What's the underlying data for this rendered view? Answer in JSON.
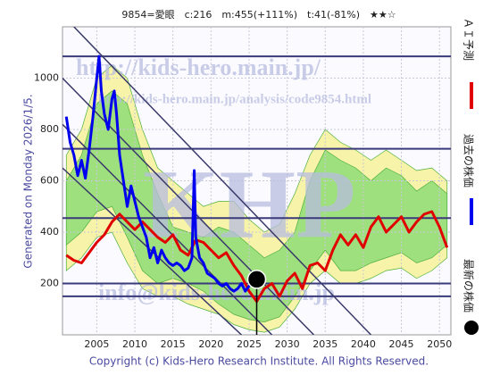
{
  "chart_data": {
    "type": "line",
    "title": "9854=愛眼　c:216　m:455(+111%)　t:41(-81%)　★★☆",
    "side_label": "Generated on Monday 2026/1/5.",
    "footer": "Copyright (c) Kids-Hero Research Institute. All Rights Reserved.",
    "watermarks": [
      "http://kids-hero.main.jp/",
      "http://kids-hero.main.jp/analysis/code9854.html",
      "info@kids-hero.main.jp",
      "KHP"
    ],
    "xlim": [
      2000.5,
      2051.5
    ],
    "ylim": [
      0,
      1200
    ],
    "xticks": [
      2005,
      2010,
      2015,
      2020,
      2025,
      2030,
      2035,
      2040,
      2045,
      2050
    ],
    "yticks": [
      200,
      400,
      600,
      800,
      1000
    ],
    "grid": true,
    "hlines": {
      "color": "#3a3a7a",
      "values": [
        1085,
        725,
        455,
        200,
        150
      ]
    },
    "trend_lines": {
      "color": "#3a3a6a",
      "lines": [
        {
          "x": [
            2002,
            2041
          ],
          "values": [
            1200,
            0
          ]
        },
        {
          "x": [
            2000.5,
            2033.5
          ],
          "values": [
            1000,
            0
          ]
        },
        {
          "x": [
            2000.5,
            2028
          ],
          "values": [
            820,
            0
          ]
        },
        {
          "x": [
            2000.5,
            2024
          ],
          "values": [
            650,
            0
          ]
        }
      ]
    },
    "bands": [
      {
        "color": "#f7f3a8",
        "x": [
          2001,
          2003,
          2005,
          2007,
          2009,
          2011,
          2013,
          2015,
          2017,
          2019,
          2021,
          2023,
          2025,
          2027,
          2029,
          2031,
          2033,
          2035,
          2037,
          2039,
          2041,
          2043,
          2045,
          2047,
          2049,
          2051
        ],
        "upper": [
          700,
          800,
          1000,
          1050,
          1000,
          800,
          650,
          600,
          550,
          500,
          520,
          520,
          450,
          400,
          430,
          550,
          700,
          800,
          750,
          720,
          680,
          720,
          680,
          640,
          650,
          600
        ],
        "lower": [
          250,
          300,
          380,
          400,
          280,
          180,
          150,
          150,
          120,
          100,
          80,
          40,
          20,
          10,
          30,
          100,
          200,
          250,
          200,
          200,
          220,
          250,
          260,
          220,
          250,
          300
        ]
      },
      {
        "color": "#9ee07e",
        "x": [
          2001,
          2003,
          2005,
          2007,
          2009,
          2011,
          2013,
          2015,
          2017,
          2019,
          2021,
          2023,
          2025,
          2027,
          2029,
          2031,
          2033,
          2035,
          2037,
          2039,
          2041,
          2043,
          2045,
          2047,
          2049,
          2051
        ],
        "upper": [
          600,
          700,
          900,
          950,
          900,
          700,
          550,
          420,
          400,
          380,
          420,
          400,
          350,
          300,
          330,
          400,
          600,
          720,
          680,
          650,
          600,
          650,
          620,
          560,
          600,
          550
        ],
        "lower": [
          350,
          400,
          480,
          500,
          380,
          250,
          200,
          220,
          200,
          170,
          120,
          80,
          60,
          50,
          70,
          150,
          250,
          330,
          250,
          250,
          280,
          300,
          320,
          280,
          300,
          350
        ]
      }
    ],
    "series": [
      {
        "name": "ＡＩ予測",
        "color": "#e00000",
        "x": [
          2001,
          2002,
          2003,
          2004,
          2005,
          2006,
          2007,
          2008,
          2009,
          2010,
          2011,
          2012,
          2013,
          2014,
          2015,
          2016,
          2017,
          2018,
          2019,
          2020,
          2021,
          2022,
          2023,
          2024,
          2025,
          2026,
          2027,
          2028,
          2029,
          2030,
          2031,
          2032,
          2033,
          2034,
          2035,
          2036,
          2037,
          2038,
          2039,
          2040,
          2041,
          2042,
          2043,
          2044,
          2045,
          2046,
          2047,
          2048,
          2049,
          2050,
          2051
        ],
        "values": [
          310,
          290,
          280,
          320,
          360,
          390,
          440,
          470,
          440,
          410,
          440,
          410,
          380,
          360,
          390,
          330,
          310,
          370,
          360,
          330,
          300,
          320,
          270,
          230,
          170,
          130,
          180,
          200,
          150,
          210,
          240,
          180,
          270,
          280,
          250,
          330,
          390,
          350,
          390,
          340,
          420,
          460,
          400,
          430,
          460,
          400,
          440,
          470,
          480,
          420,
          340
        ]
      },
      {
        "name": "過去の株価",
        "color": "#0000ee",
        "x": [
          2001,
          2001.5,
          2002,
          2002.5,
          2003,
          2003.5,
          2004,
          2004.5,
          2005,
          2005.3,
          2005.6,
          2006,
          2006.5,
          2007,
          2007.3,
          2007.6,
          2008,
          2008.5,
          2009,
          2009.5,
          2010,
          2010.5,
          2011,
          2011.5,
          2012,
          2012.5,
          2013,
          2013.5,
          2014,
          2014.5,
          2015,
          2015.5,
          2016,
          2016.5,
          2017,
          2017.5,
          2017.8,
          2018,
          2018.5,
          2019,
          2019.5,
          2020,
          2020.5,
          2021,
          2021.5,
          2022,
          2022.5,
          2023,
          2023.5,
          2024,
          2024.5,
          2025,
          2025.5,
          2026
        ],
        "values": [
          850,
          750,
          700,
          620,
          680,
          610,
          720,
          850,
          1000,
          1085,
          950,
          860,
          800,
          920,
          950,
          860,
          700,
          600,
          500,
          580,
          520,
          460,
          420,
          380,
          300,
          340,
          280,
          330,
          300,
          280,
          270,
          280,
          270,
          250,
          260,
          300,
          640,
          380,
          300,
          280,
          240,
          230,
          220,
          200,
          190,
          200,
          180,
          170,
          180,
          200,
          170,
          190,
          200,
          216
        ]
      },
      {
        "name": "最新の株価",
        "color": "#000000",
        "x": [
          2026
        ],
        "values": [
          216
        ]
      }
    ]
  }
}
